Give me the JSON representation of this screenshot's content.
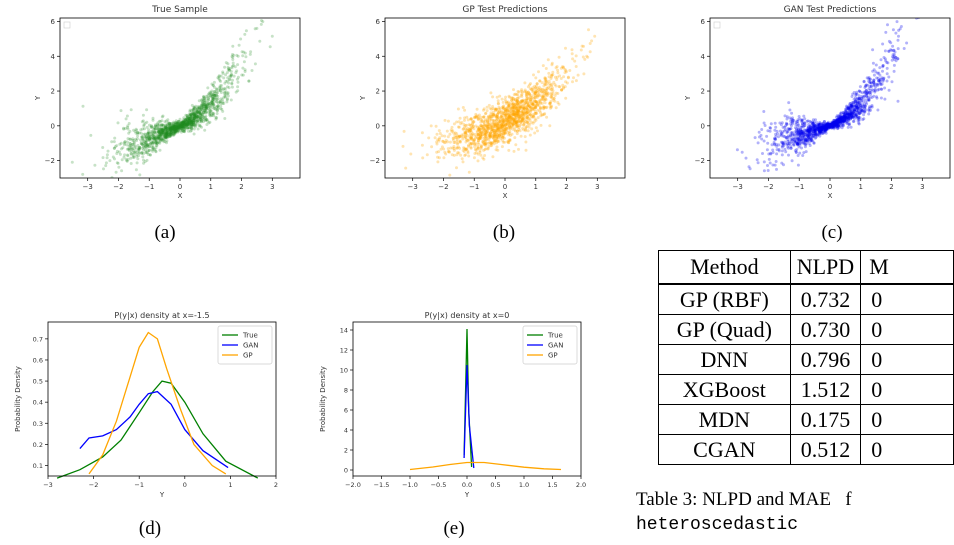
{
  "scatter_panels": [
    {
      "id": "a",
      "title": "True Sample",
      "xlabel": "X",
      "ylabel": "Y",
      "color": "#1f8a1f",
      "alpha": 0.25,
      "spread": "true",
      "show_legend_box": true,
      "xticks": [
        "−3",
        "−2",
        "−1",
        "0",
        "1",
        "2",
        "3"
      ],
      "yticks": [
        "−2",
        "0",
        "2",
        "4",
        "6"
      ],
      "caption": "(a)"
    },
    {
      "id": "b",
      "title": "GP Test Predictions",
      "xlabel": "X",
      "ylabel": "Y",
      "color": "#ffa500",
      "alpha": 0.3,
      "spread": "gp",
      "show_legend_box": false,
      "xticks": [
        "−3",
        "−2",
        "−1",
        "0",
        "1",
        "2",
        "3"
      ],
      "yticks": [
        "−2",
        "0",
        "2",
        "4",
        "6"
      ],
      "caption": "(b)"
    },
    {
      "id": "c",
      "title": "GAN Test Predictions",
      "xlabel": "X",
      "ylabel": "Y",
      "color": "#0000ee",
      "alpha": 0.3,
      "spread": "gan",
      "show_legend_box": true,
      "xticks": [
        "−3",
        "−2",
        "−1",
        "0",
        "1",
        "2",
        "3"
      ],
      "yticks": [
        "−2",
        "0",
        "2",
        "4",
        "6"
      ],
      "caption": "(c)"
    }
  ],
  "chart_data": [
    {
      "type": "line",
      "panel": "d",
      "title": "P(y|x) density at x=-1.5",
      "xlabel": "Y",
      "ylabel": "Probability Density",
      "xlim": [
        -3,
        2
      ],
      "ylim": [
        0.05,
        0.78
      ],
      "xticks": [
        "−3",
        "−2",
        "−1",
        "0",
        "1",
        "2"
      ],
      "yticks": [
        "0.1",
        "0.2",
        "0.3",
        "0.4",
        "0.5",
        "0.6",
        "0.7"
      ],
      "legend": "top-right",
      "series": [
        {
          "name": "True",
          "color": "#008000",
          "x": [
            -2.8,
            -2.3,
            -1.8,
            -1.4,
            -1.0,
            -0.7,
            -0.5,
            -0.3,
            0.0,
            0.4,
            0.9,
            1.6
          ],
          "y": [
            0.04,
            0.08,
            0.14,
            0.22,
            0.35,
            0.45,
            0.5,
            0.49,
            0.4,
            0.25,
            0.12,
            0.04
          ]
        },
        {
          "name": "GAN",
          "color": "#0000ff",
          "x": [
            -2.3,
            -2.1,
            -1.8,
            -1.5,
            -1.2,
            -1.0,
            -0.8,
            -0.6,
            -0.3,
            0.0,
            0.4,
            0.95
          ],
          "y": [
            0.18,
            0.23,
            0.24,
            0.27,
            0.33,
            0.39,
            0.44,
            0.45,
            0.39,
            0.27,
            0.17,
            0.09
          ]
        },
        {
          "name": "GP",
          "color": "#ffa500",
          "x": [
            -2.1,
            -1.8,
            -1.5,
            -1.2,
            -1.0,
            -0.8,
            -0.6,
            -0.4,
            -0.1,
            0.2,
            0.6,
            0.9
          ],
          "y": [
            0.06,
            0.15,
            0.31,
            0.52,
            0.66,
            0.73,
            0.7,
            0.56,
            0.37,
            0.2,
            0.1,
            0.06
          ]
        }
      ],
      "caption": "(d)"
    },
    {
      "type": "line",
      "panel": "e",
      "title": "P(y|x) density at x=0",
      "xlabel": "Y",
      "ylabel": "Probability Density",
      "xlim": [
        -2,
        2
      ],
      "ylim": [
        -0.6,
        14.8
      ],
      "xticks": [
        "−2.0",
        "−1.5",
        "−1.0",
        "−0.5",
        "0.0",
        "0.5",
        "1.0",
        "1.5",
        "2.0"
      ],
      "yticks": [
        "0",
        "2",
        "4",
        "6",
        "8",
        "10",
        "12",
        "14"
      ],
      "legend": "top-right",
      "series": [
        {
          "name": "True",
          "color": "#008000",
          "x": [
            -0.05,
            0.0,
            0.03,
            0.08
          ],
          "y": [
            1.5,
            14.1,
            6.0,
            0.3
          ]
        },
        {
          "name": "GAN",
          "color": "#0000ff",
          "x": [
            -0.05,
            0.0,
            0.04,
            0.12
          ],
          "y": [
            1.2,
            10.5,
            4.5,
            0.2
          ]
        },
        {
          "name": "GP",
          "color": "#ffa500",
          "x": [
            -1.0,
            -0.6,
            -0.3,
            0.0,
            0.3,
            0.6,
            1.0,
            1.35,
            1.65
          ],
          "y": [
            0.05,
            0.3,
            0.55,
            0.75,
            0.75,
            0.55,
            0.28,
            0.12,
            0.05
          ]
        }
      ],
      "caption": "(e)"
    }
  ],
  "table": {
    "headers": [
      "Method",
      "NLPD",
      "M"
    ],
    "rows": [
      {
        "method": "GP (RBF)",
        "nlpd": "0.732",
        "mae": "0"
      },
      {
        "method": "GP (Quad)",
        "nlpd": "0.730",
        "mae": "0"
      },
      {
        "method": "DNN",
        "nlpd": "0.796",
        "mae": "0"
      },
      {
        "method": "XGBoost",
        "nlpd": "1.512",
        "mae": "0"
      },
      {
        "method": "MDN",
        "nlpd": "0.175",
        "mae": "0",
        "bold_nlpd": true
      },
      {
        "method": "CGAN",
        "nlpd": "0.512",
        "mae": "0"
      }
    ],
    "caption_line1": "Table 3:  NLPD and MAE",
    "caption_line1_tail": "f",
    "caption_line2": "heteroscedastic"
  }
}
